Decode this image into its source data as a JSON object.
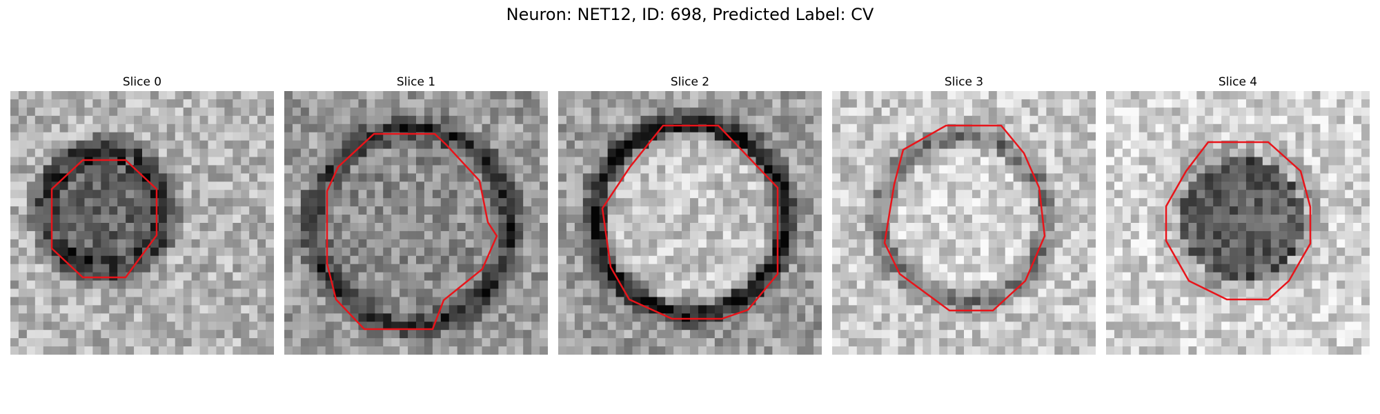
{
  "figure": {
    "title": "Neuron: NET12, ID: 698, Predicted Label: CV",
    "contour_color": "#e8141a"
  },
  "panels": [
    {
      "title": "Slice 0"
    },
    {
      "title": "Slice 1"
    },
    {
      "title": "Slice 2"
    },
    {
      "title": "Slice 3"
    },
    {
      "title": "Slice 4"
    }
  ]
}
